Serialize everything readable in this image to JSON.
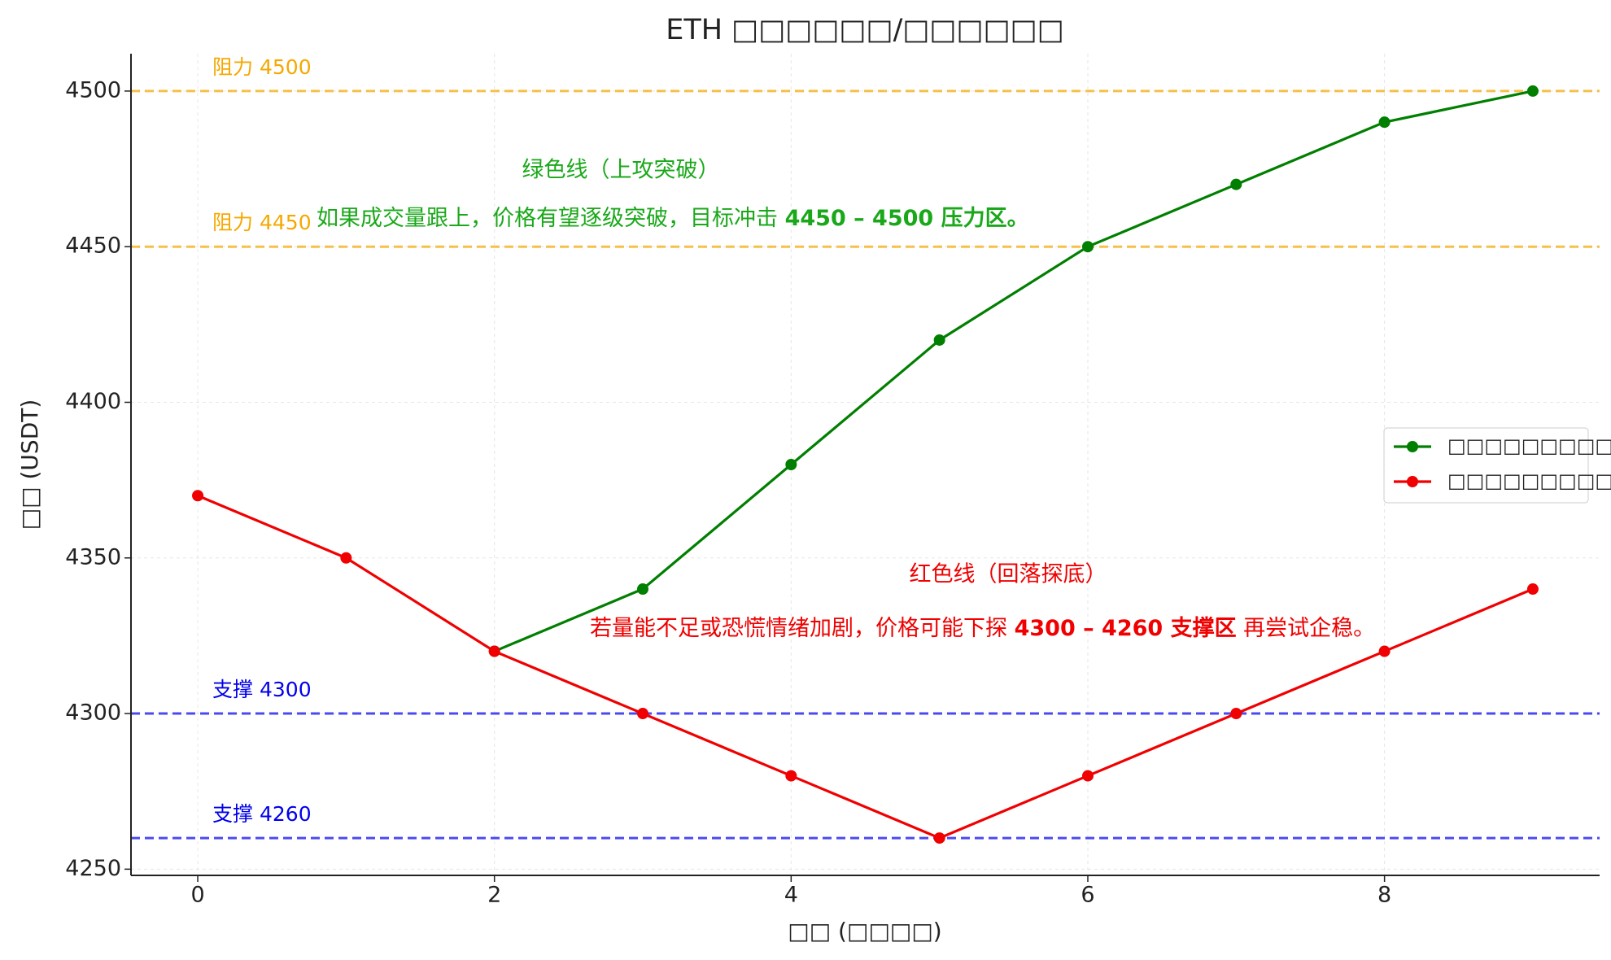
{
  "chart_data": {
    "type": "line",
    "title": "ETH □□□□□□/□□□□□□",
    "x_label": "□□ (□□□□)",
    "y_label": "□□ (USDT)",
    "x": [
      0,
      1,
      2,
      3,
      4,
      5,
      6,
      7,
      8,
      9
    ],
    "series": [
      {
        "name": "□□□□□□□□□",
        "color": "#007f00",
        "values": [
          null,
          null,
          4320,
          4340,
          4380,
          4420,
          4450,
          4470,
          4490,
          4500
        ]
      },
      {
        "name": "□□□□□□□□□",
        "color": "#f00000",
        "values": [
          4370,
          4350,
          4320,
          4300,
          4280,
          4260,
          4280,
          4300,
          4320,
          4340
        ]
      }
    ],
    "xlim": [
      -0.45,
      9.45
    ],
    "xticks": [
      0,
      2,
      4,
      6,
      8
    ],
    "ylim": [
      4248,
      4512
    ],
    "yticks": [
      4250,
      4300,
      4350,
      4400,
      4450,
      4500
    ],
    "grid": true,
    "legend": "right",
    "reference_lines": [
      {
        "value": 4500,
        "label": "阻力 4500",
        "color": "#f5a800"
      },
      {
        "value": 4450,
        "label": "阻力 4450",
        "color": "#f5a800"
      },
      {
        "value": 4300,
        "label": "支撑 4300",
        "color": "#0000ee"
      },
      {
        "value": 4260,
        "label": "支撑 4260",
        "color": "#0000ee"
      }
    ],
    "annotations": [
      {
        "color": "#1aa81a",
        "title": "绿色线（上攻突破）",
        "text": [
          {
            "text": "如果成交量跟上，价格有望逐级突破，目标冲击 ",
            "bold": false
          },
          {
            "text": "4450 – 4500 压力区。",
            "bold": true
          }
        ]
      },
      {
        "color": "#f00000",
        "title": "红色线（回落探底）",
        "text": [
          {
            "text": "若量能不足或恐慌情绪加剧，价格可能下探 ",
            "bold": false
          },
          {
            "text": "4300 – 4260 支撑区",
            "bold": true
          },
          {
            "text": " 再尝试企稳。",
            "bold": false
          }
        ]
      }
    ]
  }
}
